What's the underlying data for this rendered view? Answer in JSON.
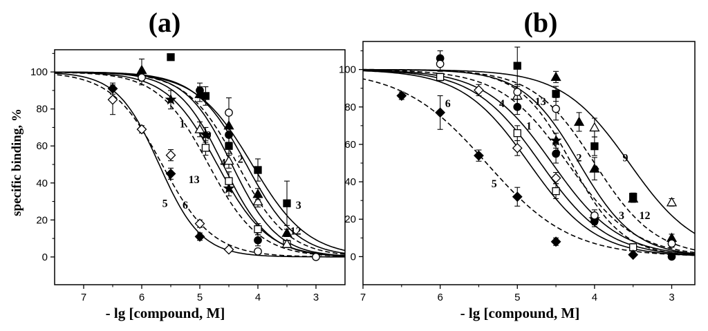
{
  "chart_data": [
    {
      "type": "scatter",
      "panel": "a",
      "title": "(a)",
      "xlabel": "- lg [compound, M]",
      "ylabel": "specific binding, %",
      "xlim": [
        7.5,
        2.5
      ],
      "ylim": [
        -15,
        112
      ],
      "x_ticks": [
        "7",
        "6",
        "5",
        "4",
        "3"
      ],
      "y_ticks": [
        "0",
        "20",
        "40",
        "60",
        "80",
        "100"
      ],
      "curve_labels": [
        {
          "text": "1",
          "x": 5.3,
          "y": 70
        },
        {
          "text": "9",
          "x": 4.85,
          "y": 64
        },
        {
          "text": "4",
          "x": 4.6,
          "y": 49
        },
        {
          "text": "2",
          "x": 4.3,
          "y": 51
        },
        {
          "text": "13",
          "x": 5.1,
          "y": 40
        },
        {
          "text": "5",
          "x": 5.6,
          "y": 27
        },
        {
          "text": "6",
          "x": 5.25,
          "y": 26
        },
        {
          "text": "3",
          "x": 3.3,
          "y": 26
        },
        {
          "text": "12",
          "x": 3.35,
          "y": 12
        }
      ],
      "series": [
        {
          "name": "1",
          "marker": "star",
          "fill": "filled",
          "dash": "solid",
          "ic50_log": 4.7,
          "hill": 1.0,
          "points": [
            [
              5.5,
              85,
              5
            ],
            [
              4.9,
              66,
              4
            ],
            [
              4.5,
              37,
              4
            ]
          ]
        },
        {
          "name": "2",
          "marker": "circle",
          "fill": "filled",
          "dash": "solid",
          "ic50_log": 4.45,
          "hill": 1.1,
          "points": [
            [
              5.0,
              90,
              4
            ],
            [
              4.5,
              66,
              4
            ],
            [
              4.0,
              9,
              3
            ]
          ]
        },
        {
          "name": "3",
          "marker": "square",
          "fill": "filled",
          "dash": "solid",
          "ic50_log": 4.1,
          "hill": 0.9,
          "points": [
            [
              5.5,
              108,
              0
            ],
            [
              4.9,
              87,
              5
            ],
            [
              4.5,
              60,
              5
            ],
            [
              4.0,
              47,
              6
            ],
            [
              3.5,
              29,
              12
            ]
          ]
        },
        {
          "name": "4",
          "marker": "square",
          "fill": "open",
          "dash": "solid",
          "ic50_log": 4.6,
          "hill": 1.1,
          "points": [
            [
              4.9,
              59,
              4
            ],
            [
              4.5,
              41,
              5
            ],
            [
              4.0,
              15,
              3
            ],
            [
              3.5,
              7,
              2
            ]
          ]
        },
        {
          "name": "5",
          "marker": "diamond",
          "fill": "filled",
          "dash": "solid",
          "ic50_log": 5.7,
          "hill": 1.2,
          "points": [
            [
              6.5,
              91,
              3
            ],
            [
              5.5,
              45,
              3
            ],
            [
              5.0,
              11,
              2
            ]
          ]
        },
        {
          "name": "6",
          "marker": "diamond",
          "fill": "open",
          "dash": "dashed",
          "ic50_log": 5.65,
          "hill": 1.0,
          "points": [
            [
              6.5,
              85,
              8
            ],
            [
              6.0,
              69,
              2
            ],
            [
              5.5,
              55,
              3
            ],
            [
              5.0,
              18,
              2
            ],
            [
              4.5,
              4,
              1
            ]
          ]
        },
        {
          "name": "9",
          "marker": "triangle",
          "fill": "open",
          "dash": "dashed",
          "ic50_log": 4.35,
          "hill": 1.0,
          "points": [
            [
              5.0,
              69,
              4
            ],
            [
              4.5,
              52,
              4
            ],
            [
              4.0,
              30,
              3
            ],
            [
              3.5,
              7,
              2
            ]
          ]
        },
        {
          "name": "12",
          "marker": "triangle",
          "fill": "filled",
          "dash": "solid",
          "ic50_log": 4.2,
          "hill": 1.0,
          "points": [
            [
              6.0,
              101,
              6
            ],
            [
              5.0,
              88,
              4
            ],
            [
              4.5,
              71,
              6
            ],
            [
              4.0,
              34,
              3
            ],
            [
              3.5,
              13,
              2
            ]
          ]
        },
        {
          "name": "13",
          "marker": "circle",
          "fill": "open",
          "dash": "dashed",
          "ic50_log": 4.85,
          "hill": 1.0,
          "points": [
            [
              6.0,
              97,
              4
            ],
            [
              4.5,
              78,
              8
            ],
            [
              4.0,
              3,
              1
            ],
            [
              3.0,
              0,
              1
            ]
          ]
        }
      ]
    },
    {
      "type": "scatter",
      "panel": "b",
      "title": "(b)",
      "xlabel": "- lg [compound, M]",
      "ylabel": "",
      "xlim": [
        7,
        2.7
      ],
      "ylim": [
        -15,
        115
      ],
      "x_ticks": [
        "7",
        "6",
        "5",
        "4",
        "3"
      ],
      "y_ticks": [
        "0",
        "20",
        "40",
        "60",
        "80",
        "100"
      ],
      "curve_labels": [
        {
          "text": "6",
          "x": 5.9,
          "y": 80
        },
        {
          "text": "4",
          "x": 5.2,
          "y": 80
        },
        {
          "text": "13",
          "x": 4.7,
          "y": 81
        },
        {
          "text": "1",
          "x": 4.85,
          "y": 68
        },
        {
          "text": "2",
          "x": 4.2,
          "y": 51
        },
        {
          "text": "5",
          "x": 5.3,
          "y": 37
        },
        {
          "text": "9",
          "x": 3.6,
          "y": 51
        },
        {
          "text": "3",
          "x": 3.65,
          "y": 20
        },
        {
          "text": "12",
          "x": 3.35,
          "y": 20
        }
      ],
      "series": [
        {
          "name": "1",
          "marker": "circle",
          "fill": "filled",
          "dash": "solid",
          "ic50_log": 4.55,
          "hill": 1.0,
          "points": [
            [
              6.0,
              106,
              4
            ],
            [
              5.0,
              80,
              4
            ],
            [
              4.5,
              55,
              5
            ],
            [
              4.0,
              19,
              3
            ],
            [
              3.0,
              0,
              1
            ]
          ]
        },
        {
          "name": "2",
          "marker": "star",
          "fill": "filled",
          "dash": "dashed",
          "ic50_log": 4.3,
          "hill": 1.3,
          "points": [
            [
              4.5,
              62,
              4
            ],
            [
              4.0,
              20,
              3
            ]
          ]
        },
        {
          "name": "3",
          "marker": "square",
          "fill": "filled",
          "dash": "solid",
          "ic50_log": 4.2,
          "hill": 1.2,
          "points": [
            [
              5.0,
              102,
              10
            ],
            [
              4.5,
              87,
              4
            ],
            [
              4.0,
              59,
              5
            ],
            [
              3.5,
              32,
              2
            ]
          ]
        },
        {
          "name": "4",
          "marker": "square",
          "fill": "open",
          "dash": "solid",
          "ic50_log": 4.7,
          "hill": 1.0,
          "points": [
            [
              6.0,
              96,
              2
            ],
            [
              5.0,
              66,
              4
            ],
            [
              4.5,
              35,
              4
            ],
            [
              3.5,
              5,
              2
            ]
          ]
        },
        {
          "name": "5",
          "marker": "diamond",
          "fill": "filled",
          "dash": "dashed",
          "ic50_log": 5.4,
          "hill": 0.8,
          "points": [
            [
              6.5,
              86,
              2
            ],
            [
              6.0,
              77,
              9
            ],
            [
              5.5,
              54,
              3
            ],
            [
              5.0,
              32,
              5
            ],
            [
              4.5,
              8,
              2
            ],
            [
              3.5,
              1,
              1
            ]
          ]
        },
        {
          "name": "6",
          "marker": "diamond",
          "fill": "open",
          "dash": "solid",
          "ic50_log": 4.85,
          "hill": 1.0,
          "points": [
            [
              5.5,
              89,
              3
            ],
            [
              5.0,
              58,
              4
            ],
            [
              4.5,
              42,
              3
            ]
          ]
        },
        {
          "name": "9",
          "marker": "triangle",
          "fill": "open",
          "dash": "solid",
          "ic50_log": 3.55,
          "hill": 1.0,
          "points": [
            [
              5.0,
              86,
              5
            ],
            [
              4.0,
              69,
              5
            ],
            [
              3.0,
              29,
              2
            ]
          ]
        },
        {
          "name": "12",
          "marker": "triangle",
          "fill": "filled",
          "dash": "dashed",
          "ic50_log": 4.0,
          "hill": 1.1,
          "points": [
            [
              4.5,
              96,
              3
            ],
            [
              4.2,
              72,
              5
            ],
            [
              4.0,
              47,
              6
            ],
            [
              3.5,
              31,
              2
            ],
            [
              3.0,
              10,
              2
            ]
          ]
        },
        {
          "name": "13",
          "marker": "circle",
          "fill": "open",
          "dash": "dashed",
          "ic50_log": 4.35,
          "hill": 1.0,
          "points": [
            [
              6.0,
              103,
              4
            ],
            [
              5.0,
              88,
              4
            ],
            [
              4.5,
              79,
              6
            ],
            [
              4.0,
              22,
              3
            ],
            [
              3.0,
              7,
              2
            ]
          ]
        }
      ]
    }
  ]
}
